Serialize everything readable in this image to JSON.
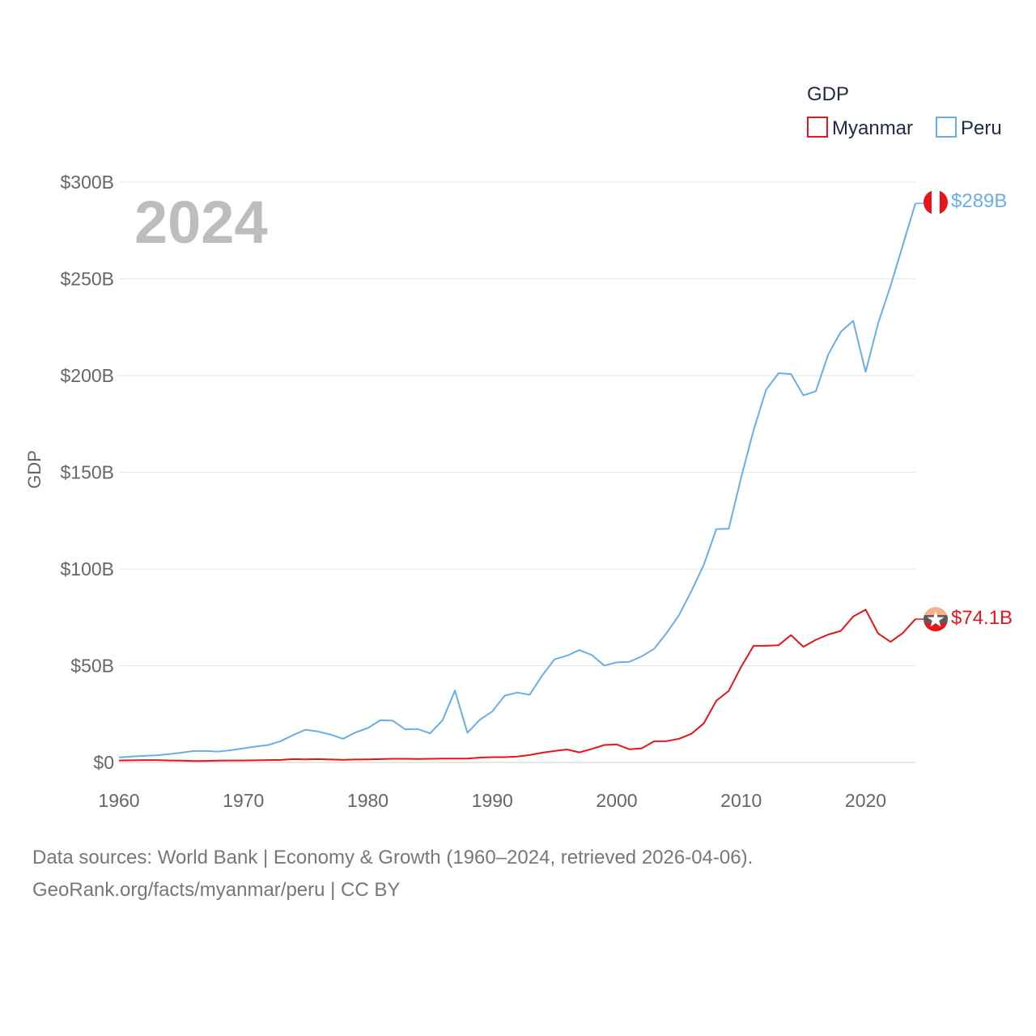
{
  "chart_data": {
    "type": "line",
    "title": "",
    "legend_title": "GDP",
    "ylabel": "GDP",
    "xlabel": "",
    "year_label": "2024",
    "xlim": [
      1960,
      2024
    ],
    "ylim": [
      0,
      300
    ],
    "x_ticks": [
      "1960",
      "1970",
      "1980",
      "1990",
      "2000",
      "2010",
      "2020"
    ],
    "x_tick_values": [
      1960,
      1970,
      1980,
      1990,
      2000,
      2010,
      2020
    ],
    "y_ticks": [
      "$0",
      "$50B",
      "$100B",
      "$150B",
      "$200B",
      "$250B",
      "$300B"
    ],
    "y_tick_values": [
      0,
      50,
      100,
      150,
      200,
      250,
      300
    ],
    "units": "billions of US$",
    "x": [
      1960,
      1961,
      1962,
      1963,
      1964,
      1965,
      1966,
      1967,
      1968,
      1969,
      1970,
      1971,
      1972,
      1973,
      1974,
      1975,
      1976,
      1977,
      1978,
      1979,
      1980,
      1981,
      1982,
      1983,
      1984,
      1985,
      1986,
      1987,
      1988,
      1989,
      1990,
      1991,
      1992,
      1993,
      1994,
      1995,
      1996,
      1997,
      1998,
      1999,
      2000,
      2001,
      2002,
      2003,
      2004,
      2005,
      2006,
      2007,
      2008,
      2009,
      2010,
      2011,
      2012,
      2013,
      2014,
      2015,
      2016,
      2017,
      2018,
      2019,
      2020,
      2021,
      2022,
      2023,
      2024
    ],
    "series": [
      {
        "name": "Myanmar",
        "color": "#e8141b",
        "end_label": "$74.1B",
        "values": [
          1.0,
          1.1,
          1.2,
          1.2,
          1.0,
          0.9,
          0.7,
          0.8,
          0.9,
          1.0,
          1.0,
          1.1,
          1.2,
          1.3,
          1.7,
          1.6,
          1.7,
          1.5,
          1.4,
          1.5,
          1.6,
          1.7,
          1.9,
          1.9,
          1.8,
          1.9,
          2.0,
          2.0,
          2.0,
          2.5,
          2.7,
          2.7,
          3.0,
          3.8,
          5.0,
          5.9,
          6.7,
          5.2,
          7.0,
          9.0,
          9.3,
          6.8,
          7.3,
          10.9,
          11.0,
          12.2,
          14.8,
          20.2,
          31.9,
          37.0,
          49.5,
          60.3,
          60.3,
          60.6,
          65.8,
          59.8,
          63.4,
          66.1,
          68.0,
          75.4,
          79.0,
          66.7,
          62.3,
          67.0,
          74.1
        ]
      },
      {
        "name": "Peru",
        "color": "#6aaee6",
        "end_label": "$289B",
        "values": [
          2.6,
          3.0,
          3.4,
          3.7,
          4.3,
          5.0,
          5.9,
          5.9,
          5.6,
          6.3,
          7.3,
          8.2,
          9.0,
          11.0,
          14.2,
          16.9,
          16.0,
          14.4,
          12.2,
          15.5,
          17.8,
          21.8,
          21.6,
          17.1,
          17.3,
          15.0,
          21.8,
          37.2,
          15.3,
          22.1,
          26.4,
          34.5,
          36.1,
          35.0,
          44.9,
          53.3,
          55.2,
          58.1,
          55.5,
          50.1,
          51.7,
          52.0,
          54.8,
          58.7,
          66.8,
          76.1,
          88.6,
          102.2,
          120.6,
          120.8,
          147.5,
          171.8,
          192.6,
          201.2,
          200.8,
          189.8,
          191.9,
          211.0,
          222.6,
          228.3,
          201.9,
          226.9,
          246.3,
          267.6,
          289.0
        ]
      }
    ]
  },
  "footer": {
    "line1": "Data sources: World Bank | Economy & Growth (1960–2024, retrieved 2026-04-06).",
    "line2": "GeoRank.org/facts/myanmar/peru | CC BY"
  }
}
